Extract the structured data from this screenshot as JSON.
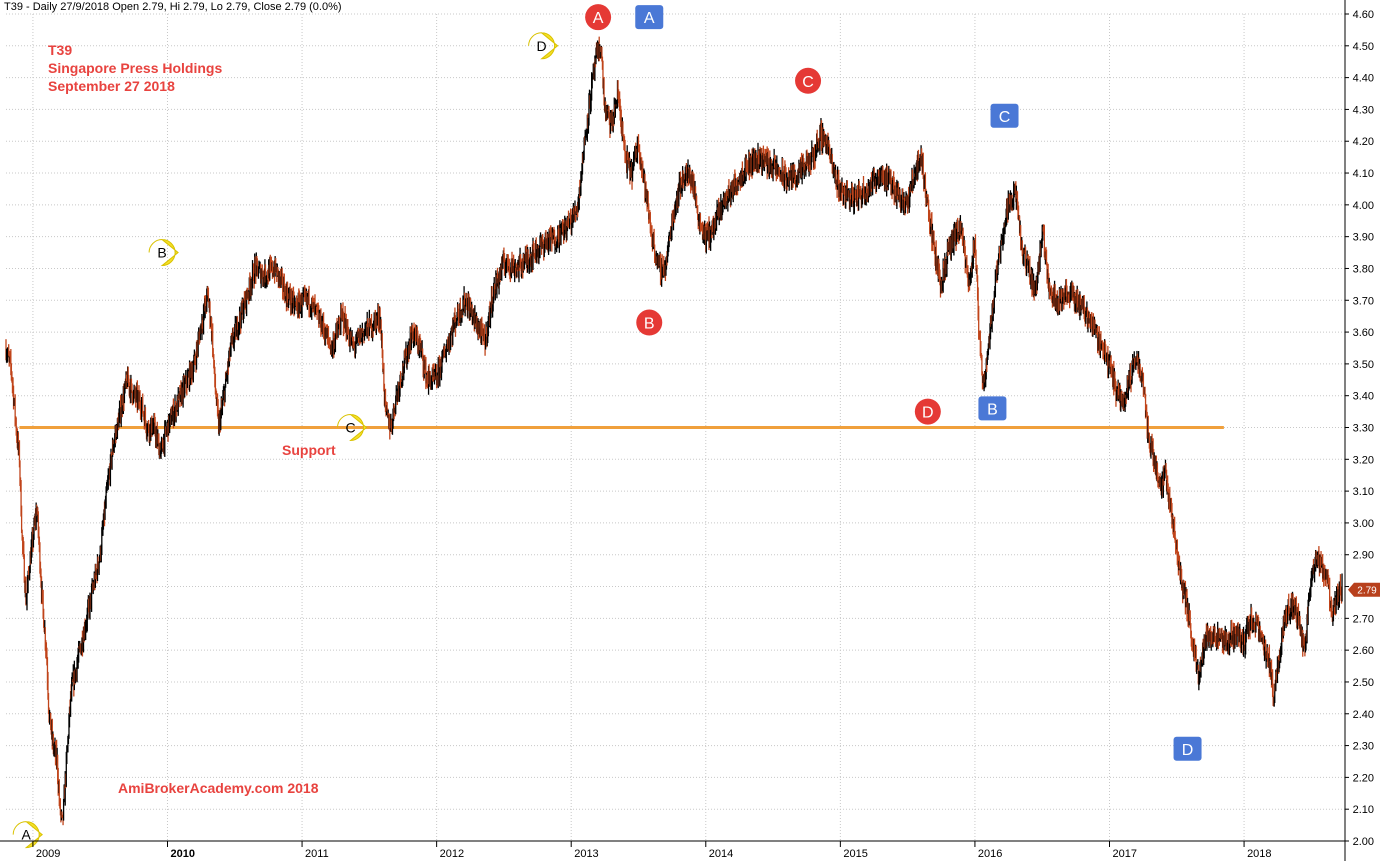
{
  "header": {
    "quote_line": "T39 - Daily 27/9/2018 Open 2.79, Hi 2.79, Lo 2.79, Close 2.79 (0.0%)"
  },
  "annotations": {
    "ticker": "T39",
    "company": "Singapore Press Holdings",
    "date": "September 27 2018",
    "support_label": "Support",
    "watermark": "AmiBrokerAcademy.com  2018"
  },
  "colors": {
    "background": "#ffffff",
    "grid": "#c8c8c8",
    "price_bar": "#000000",
    "price_bar_down": "#c0441a",
    "support_line": "#f0a03c",
    "annotation_text": "#e8433f",
    "red_marker": "#e53935",
    "blue_marker": "#4a78d6",
    "yellow_marker": "#f5e02a",
    "last_price_badge": "#b8401c"
  },
  "chart_data": {
    "type": "line",
    "style": "ohlc price series",
    "ylim": [
      2.0,
      4.6
    ],
    "y_ticks": [
      2.0,
      2.1,
      2.2,
      2.3,
      2.4,
      2.5,
      2.6,
      2.7,
      2.8,
      2.9,
      3.0,
      3.1,
      3.2,
      3.3,
      3.4,
      3.5,
      3.6,
      3.7,
      3.8,
      3.9,
      4.0,
      4.1,
      4.2,
      4.3,
      4.4,
      4.5,
      4.6
    ],
    "y_tick_labels": [
      "2.00",
      "2.10",
      "2.20",
      "2.30",
      "2.40",
      "2.50",
      "2.60",
      "2.70",
      "2.80",
      "2.90",
      "3.00",
      "3.10",
      "3.20",
      "3.30",
      "3.40",
      "3.50",
      "3.60",
      "3.70",
      "3.80",
      "3.90",
      "4.00",
      "4.10",
      "4.20",
      "4.30",
      "4.40",
      "4.50",
      "4.60"
    ],
    "x_range": [
      2008.8,
      2018.75
    ],
    "x_ticks": [
      2009,
      2010,
      2011,
      2012,
      2013,
      2014,
      2015,
      2016,
      2017,
      2018
    ],
    "x_tick_labels": [
      "2009",
      "2010",
      "2011",
      "2012",
      "2013",
      "2014",
      "2015",
      "2016",
      "2017",
      "2018"
    ],
    "grid": true,
    "price_path": [
      [
        2008.8,
        3.55
      ],
      [
        2008.84,
        3.48
      ],
      [
        2008.88,
        3.28
      ],
      [
        2008.9,
        3.2
      ],
      [
        2008.92,
        2.95
      ],
      [
        2008.95,
        2.75
      ],
      [
        2008.97,
        2.85
      ],
      [
        2009.0,
        2.95
      ],
      [
        2009.03,
        3.05
      ],
      [
        2009.05,
        2.9
      ],
      [
        2009.07,
        2.75
      ],
      [
        2009.1,
        2.6
      ],
      [
        2009.12,
        2.4
      ],
      [
        2009.15,
        2.3
      ],
      [
        2009.18,
        2.25
      ],
      [
        2009.2,
        2.1
      ],
      [
        2009.22,
        2.05
      ],
      [
        2009.25,
        2.25
      ],
      [
        2009.28,
        2.45
      ],
      [
        2009.3,
        2.5
      ],
      [
        2009.35,
        2.6
      ],
      [
        2009.4,
        2.7
      ],
      [
        2009.45,
        2.8
      ],
      [
        2009.5,
        2.9
      ],
      [
        2009.55,
        3.1
      ],
      [
        2009.6,
        3.25
      ],
      [
        2009.65,
        3.35
      ],
      [
        2009.7,
        3.45
      ],
      [
        2009.75,
        3.4
      ],
      [
        2009.8,
        3.38
      ],
      [
        2009.85,
        3.3
      ],
      [
        2009.9,
        3.3
      ],
      [
        2009.95,
        3.22
      ],
      [
        2010.0,
        3.3
      ],
      [
        2010.05,
        3.35
      ],
      [
        2010.1,
        3.4
      ],
      [
        2010.15,
        3.45
      ],
      [
        2010.2,
        3.5
      ],
      [
        2010.25,
        3.62
      ],
      [
        2010.3,
        3.72
      ],
      [
        2010.33,
        3.6
      ],
      [
        2010.35,
        3.45
      ],
      [
        2010.38,
        3.3
      ],
      [
        2010.42,
        3.4
      ],
      [
        2010.47,
        3.55
      ],
      [
        2010.52,
        3.62
      ],
      [
        2010.58,
        3.7
      ],
      [
        2010.65,
        3.8
      ],
      [
        2010.72,
        3.78
      ],
      [
        2010.8,
        3.8
      ],
      [
        2010.88,
        3.72
      ],
      [
        2010.95,
        3.68
      ],
      [
        2011.05,
        3.7
      ],
      [
        2011.15,
        3.62
      ],
      [
        2011.22,
        3.55
      ],
      [
        2011.3,
        3.65
      ],
      [
        2011.38,
        3.55
      ],
      [
        2011.45,
        3.6
      ],
      [
        2011.52,
        3.62
      ],
      [
        2011.58,
        3.65
      ],
      [
        2011.62,
        3.35
      ],
      [
        2011.66,
        3.3
      ],
      [
        2011.7,
        3.4
      ],
      [
        2011.76,
        3.5
      ],
      [
        2011.82,
        3.6
      ],
      [
        2011.88,
        3.55
      ],
      [
        2011.93,
        3.45
      ],
      [
        2012.0,
        3.45
      ],
      [
        2012.07,
        3.55
      ],
      [
        2012.15,
        3.65
      ],
      [
        2012.22,
        3.7
      ],
      [
        2012.3,
        3.62
      ],
      [
        2012.36,
        3.57
      ],
      [
        2012.42,
        3.72
      ],
      [
        2012.5,
        3.82
      ],
      [
        2012.6,
        3.8
      ],
      [
        2012.7,
        3.84
      ],
      [
        2012.8,
        3.88
      ],
      [
        2012.9,
        3.9
      ],
      [
        2013.0,
        3.95
      ],
      [
        2013.05,
        4.0
      ],
      [
        2013.1,
        4.2
      ],
      [
        2013.13,
        4.3
      ],
      [
        2013.18,
        4.45
      ],
      [
        2013.22,
        4.5
      ],
      [
        2013.25,
        4.3
      ],
      [
        2013.3,
        4.25
      ],
      [
        2013.35,
        4.35
      ],
      [
        2013.4,
        4.15
      ],
      [
        2013.45,
        4.1
      ],
      [
        2013.5,
        4.2
      ],
      [
        2013.55,
        4.05
      ],
      [
        2013.6,
        3.9
      ],
      [
        2013.65,
        3.8
      ],
      [
        2013.7,
        3.8
      ],
      [
        2013.75,
        3.95
      ],
      [
        2013.8,
        4.05
      ],
      [
        2013.85,
        4.1
      ],
      [
        2013.9,
        4.08
      ],
      [
        2013.95,
        3.95
      ],
      [
        2014.0,
        3.9
      ],
      [
        2014.05,
        3.92
      ],
      [
        2014.12,
        4.0
      ],
      [
        2014.2,
        4.05
      ],
      [
        2014.3,
        4.12
      ],
      [
        2014.4,
        4.15
      ],
      [
        2014.5,
        4.12
      ],
      [
        2014.6,
        4.08
      ],
      [
        2014.7,
        4.1
      ],
      [
        2014.8,
        4.15
      ],
      [
        2014.85,
        4.22
      ],
      [
        2014.9,
        4.2
      ],
      [
        2014.95,
        4.1
      ],
      [
        2015.0,
        4.05
      ],
      [
        2015.1,
        4.02
      ],
      [
        2015.2,
        4.05
      ],
      [
        2015.3,
        4.1
      ],
      [
        2015.4,
        4.05
      ],
      [
        2015.5,
        4.0
      ],
      [
        2015.55,
        4.1
      ],
      [
        2015.6,
        4.15
      ],
      [
        2015.65,
        4.0
      ],
      [
        2015.7,
        3.85
      ],
      [
        2015.75,
        3.75
      ],
      [
        2015.8,
        3.85
      ],
      [
        2015.85,
        3.9
      ],
      [
        2015.9,
        3.92
      ],
      [
        2015.95,
        3.75
      ],
      [
        2016.0,
        3.88
      ],
      [
        2016.03,
        3.6
      ],
      [
        2016.06,
        3.43
      ],
      [
        2016.1,
        3.55
      ],
      [
        2016.15,
        3.75
      ],
      [
        2016.2,
        3.9
      ],
      [
        2016.25,
        4.0
      ],
      [
        2016.3,
        4.05
      ],
      [
        2016.35,
        3.85
      ],
      [
        2016.4,
        3.8
      ],
      [
        2016.45,
        3.72
      ],
      [
        2016.5,
        3.92
      ],
      [
        2016.55,
        3.75
      ],
      [
        2016.6,
        3.7
      ],
      [
        2016.7,
        3.72
      ],
      [
        2016.8,
        3.68
      ],
      [
        2016.9,
        3.6
      ],
      [
        2016.95,
        3.55
      ],
      [
        2017.0,
        3.5
      ],
      [
        2017.05,
        3.42
      ],
      [
        2017.1,
        3.38
      ],
      [
        2017.15,
        3.45
      ],
      [
        2017.2,
        3.52
      ],
      [
        2017.25,
        3.45
      ],
      [
        2017.28,
        3.3
      ],
      [
        2017.33,
        3.2
      ],
      [
        2017.38,
        3.12
      ],
      [
        2017.42,
        3.15
      ],
      [
        2017.47,
        3.0
      ],
      [
        2017.52,
        2.85
      ],
      [
        2017.57,
        2.75
      ],
      [
        2017.62,
        2.62
      ],
      [
        2017.66,
        2.52
      ],
      [
        2017.7,
        2.62
      ],
      [
        2017.75,
        2.65
      ],
      [
        2017.85,
        2.62
      ],
      [
        2017.95,
        2.65
      ],
      [
        2018.0,
        2.62
      ],
      [
        2018.05,
        2.7
      ],
      [
        2018.1,
        2.67
      ],
      [
        2018.15,
        2.6
      ],
      [
        2018.2,
        2.55
      ],
      [
        2018.22,
        2.45
      ],
      [
        2018.25,
        2.55
      ],
      [
        2018.3,
        2.7
      ],
      [
        2018.35,
        2.75
      ],
      [
        2018.4,
        2.7
      ],
      [
        2018.45,
        2.6
      ],
      [
        2018.48,
        2.75
      ],
      [
        2018.53,
        2.9
      ],
      [
        2018.58,
        2.85
      ],
      [
        2018.62,
        2.82
      ],
      [
        2018.66,
        2.7
      ],
      [
        2018.7,
        2.78
      ],
      [
        2018.73,
        2.79
      ]
    ],
    "support_line": {
      "y": 3.3,
      "x_start": 2008.9,
      "x_end": 2017.85
    },
    "last_price": {
      "value": 2.79,
      "label": "2.79"
    },
    "markers": [
      {
        "label": "A",
        "kind": "yellow-pin",
        "x": 2008.95,
        "y": 2.02
      },
      {
        "label": "B",
        "kind": "yellow-pin",
        "x": 2009.96,
        "y": 3.85
      },
      {
        "label": "C",
        "kind": "yellow-pin",
        "x": 2011.36,
        "y": 3.3
      },
      {
        "label": "D",
        "kind": "yellow-pin",
        "x": 2012.78,
        "y": 4.5
      },
      {
        "label": "A",
        "kind": "red-circle",
        "x": 2013.2,
        "y": 4.59
      },
      {
        "label": "B",
        "kind": "red-circle",
        "x": 2013.58,
        "y": 3.63
      },
      {
        "label": "C",
        "kind": "red-circle",
        "x": 2014.76,
        "y": 4.39
      },
      {
        "label": "D",
        "kind": "red-circle",
        "x": 2015.65,
        "y": 3.35
      },
      {
        "label": "A",
        "kind": "blue-square",
        "x": 2013.58,
        "y": 4.59
      },
      {
        "label": "C",
        "kind": "blue-square",
        "x": 2016.22,
        "y": 4.28
      },
      {
        "label": "B",
        "kind": "blue-square",
        "x": 2016.13,
        "y": 3.36
      },
      {
        "label": "D",
        "kind": "blue-square",
        "x": 2017.58,
        "y": 2.29
      }
    ]
  }
}
